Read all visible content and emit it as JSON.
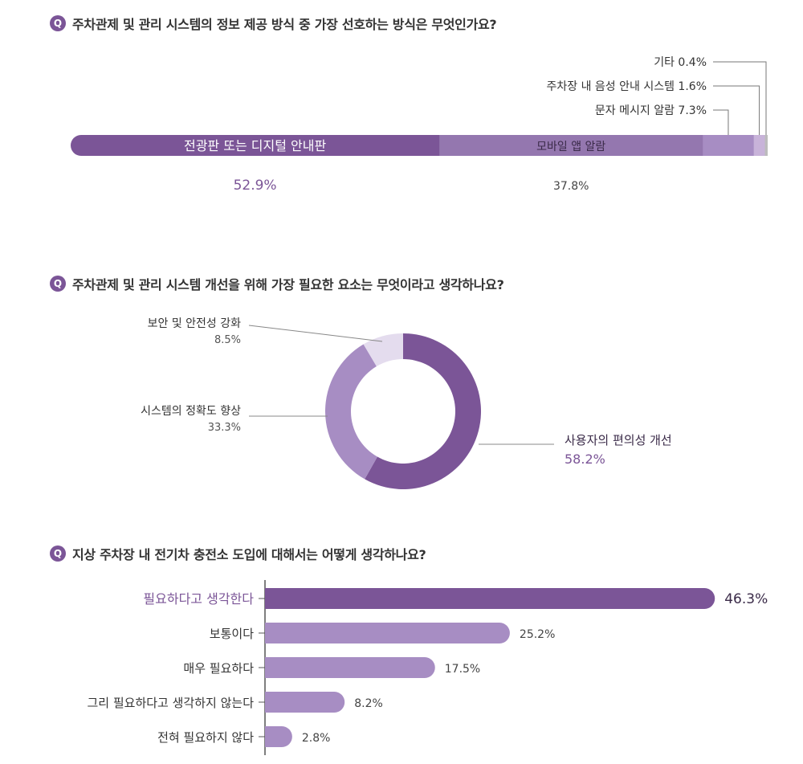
{
  "colors": {
    "dark": "#7b5597",
    "mid": "#a78dc3",
    "light": "#c8b3d9",
    "lighter": "#e4dcee",
    "gray": "#c4c4c4",
    "text": "#333333"
  },
  "questions": [
    {
      "badge": "Q",
      "text": "주차관제 및 관리 시스템의 정보 제공 방식 중 가장 선호하는 방식은 무엇인가요?"
    },
    {
      "badge": "Q",
      "text": "주차관제 및 관리 시스템 개선을 위해 가장 필요한 요소는 무엇이라고 생각하나요?"
    },
    {
      "badge": "Q",
      "text": "지상 주차장 내 전기차 충전소 도입에 대해서는 어떻게 생각하나요?"
    }
  ],
  "chart_data": [
    {
      "type": "bar",
      "stacked": true,
      "orientation": "horizontal",
      "unit": "%",
      "series": [
        {
          "name": "전광판 또는 디지털 안내판",
          "value": 52.9,
          "label": "52.9%",
          "color": "#7b5597"
        },
        {
          "name": "모바일 앱 알람",
          "value": 37.8,
          "label": "37.8%",
          "color": "#9477af"
        },
        {
          "name": "문자 메시지 알람",
          "value": 7.3,
          "label": "7.3%",
          "color": "#a78dc3"
        },
        {
          "name": "주차장 내 음성 안내 시스템",
          "value": 1.6,
          "label": "1.6%",
          "color": "#c8b3d9"
        },
        {
          "name": "기타",
          "value": 0.4,
          "label": "0.4%",
          "color": "#bcbcbc"
        }
      ]
    },
    {
      "type": "pie",
      "donut": true,
      "unit": "%",
      "slices": [
        {
          "name": "사용자의 편의성 개선",
          "value": 58.2,
          "label": "58.2%",
          "color": "#7b5597"
        },
        {
          "name": "시스템의 정확도 향상",
          "value": 33.3,
          "label": "33.3%",
          "color": "#a78dc3"
        },
        {
          "name": "보안 및 안전성 강화",
          "value": 8.5,
          "label": "8.5%",
          "color": "#e4dcee"
        }
      ]
    },
    {
      "type": "bar",
      "orientation": "horizontal",
      "unit": "%",
      "categories": [
        "필요하다고 생각한다",
        "보통이다",
        "매우 필요하다",
        "그리 필요하다고 생각하지 않는다",
        "전혀 필요하지 않다"
      ],
      "values": [
        46.3,
        25.2,
        17.5,
        8.2,
        2.8
      ],
      "labels": [
        "46.3%",
        "25.2%",
        "17.5%",
        "8.2%",
        "2.8%"
      ],
      "highlight_index": 0
    }
  ]
}
